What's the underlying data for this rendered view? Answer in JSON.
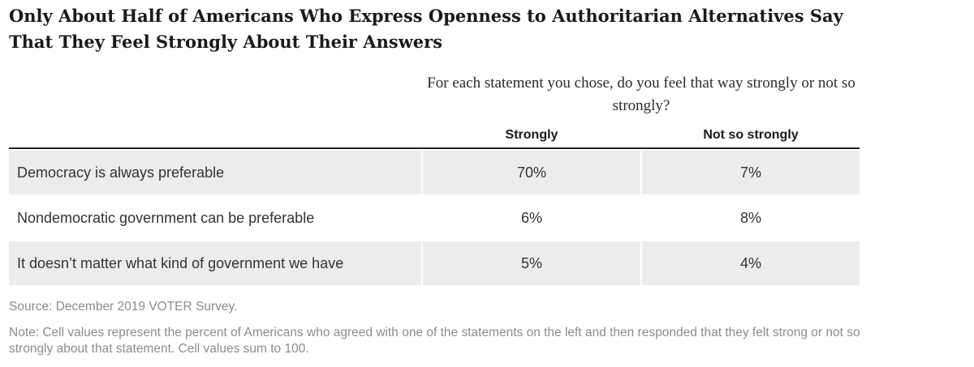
{
  "chart_data": {
    "type": "table",
    "title": "Only About Half of Americans Who Express Openness to Authoritarian Alternatives Say That They Feel Strongly About Their Answers",
    "subtitle": "For each statement you chose, do you feel that way strongly or not so strongly?",
    "columns": [
      "Strongly",
      "Not so strongly"
    ],
    "rows": [
      {
        "label": "Democracy is always preferable",
        "strongly": "70%",
        "not_so_strongly": "7%"
      },
      {
        "label": "Nondemocratic government can be preferable",
        "strongly": "6%",
        "not_so_strongly": "8%"
      },
      {
        "label": "It doesn’t matter what kind of government we have",
        "strongly": "5%",
        "not_so_strongly": "4%"
      }
    ],
    "source": "Source: December 2019 VOTER Survey.",
    "note": "Note: Cell values represent the percent of Americans who agreed with one of the statements on the left and then responded that they felt strong or not so strongly about that statement. Cell values sum to 100."
  },
  "colors": {
    "row_shading": "#ececec",
    "header_rule": "#222222",
    "footnote_text": "#8c8c8c"
  }
}
